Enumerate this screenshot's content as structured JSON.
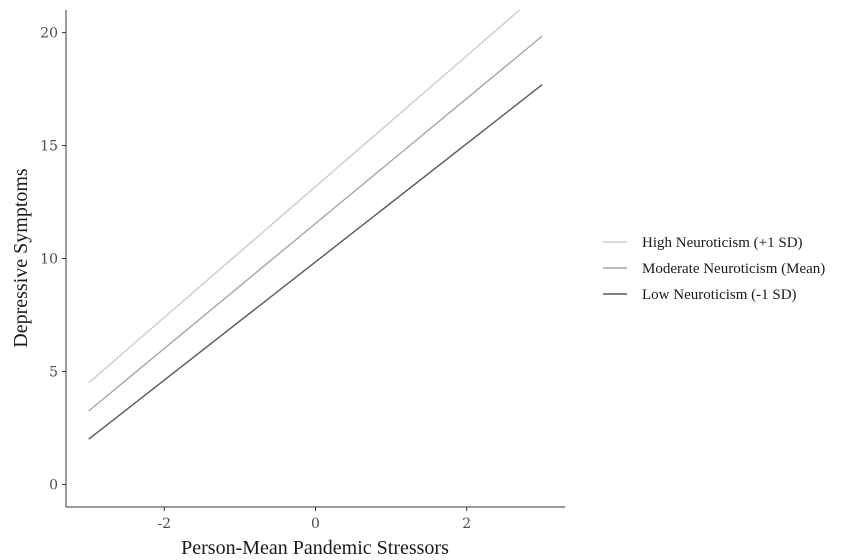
{
  "chart_data": {
    "type": "line",
    "title": "",
    "xlabel": "Person-Mean Pandemic Stressors",
    "ylabel": "Depressive Symptoms",
    "xlim": [
      -3.3,
      3.3
    ],
    "ylim": [
      -1,
      21
    ],
    "x_ticks": [
      -2,
      0,
      2
    ],
    "x_tick_labels": [
      "-2",
      "0",
      "2"
    ],
    "y_ticks": [
      0,
      5,
      10,
      15,
      20
    ],
    "y_tick_labels": [
      "0",
      "5",
      "10",
      "15",
      "20"
    ],
    "grid": false,
    "legend_position": "right",
    "series": [
      {
        "name": "High Neuroticism (+1 SD)",
        "color": "#cccccc",
        "x": [
          -3,
          2.7
        ],
        "y": [
          4.5,
          21
        ]
      },
      {
        "name": "Moderate Neuroticism (Mean)",
        "color": "#a6a6a6",
        "x": [
          -3,
          3
        ],
        "y": [
          3.25,
          19.85
        ]
      },
      {
        "name": "Low Neuroticism (-1 SD)",
        "color": "#595959",
        "x": [
          -3,
          3
        ],
        "y": [
          2.0,
          17.7
        ]
      }
    ]
  }
}
